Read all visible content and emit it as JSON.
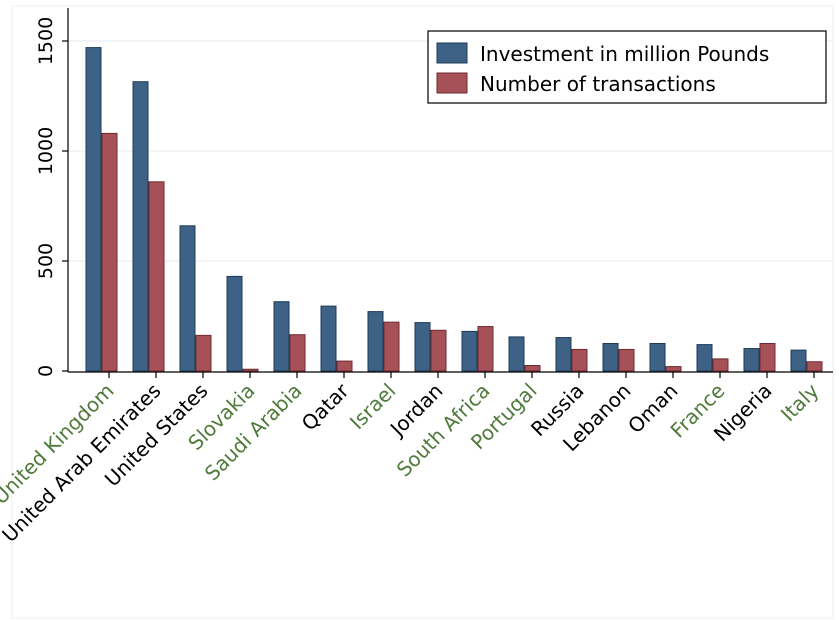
{
  "chart_data": {
    "type": "bar",
    "categories": [
      "United Kingdom",
      "United Arab Emirates",
      "United States",
      "Slovakia",
      "Saudi Arabia",
      "Qatar",
      "Israel",
      "Jordan",
      "South Africa",
      "Portugal",
      "Russia",
      "Lebanon",
      "Oman",
      "France",
      "Nigeria",
      "Italy"
    ],
    "category_colors": [
      "#4f7a3a",
      "#000000",
      "#000000",
      "#4f7a3a",
      "#4f7a3a",
      "#000000",
      "#4f7a3a",
      "#000000",
      "#4f7a3a",
      "#4f7a3a",
      "#000000",
      "#000000",
      "#000000",
      "#4f7a3a",
      "#000000",
      "#4f7a3a"
    ],
    "series": [
      {
        "name": "Investment in million Pounds",
        "color": "#3e6285",
        "values": [
          1470,
          1315,
          660,
          430,
          315,
          295,
          270,
          220,
          180,
          155,
          152,
          125,
          125,
          120,
          102,
          95
        ]
      },
      {
        "name": "Number of transactions",
        "color": "#a55157",
        "values": [
          1080,
          860,
          162,
          8,
          165,
          45,
          222,
          185,
          202,
          25,
          98,
          98,
          20,
          55,
          125,
          42
        ]
      }
    ],
    "ylim": [
      0,
      1500
    ],
    "yticks": [
      0,
      500,
      1000,
      1500
    ],
    "grid": true,
    "legend_position": "top-right"
  }
}
